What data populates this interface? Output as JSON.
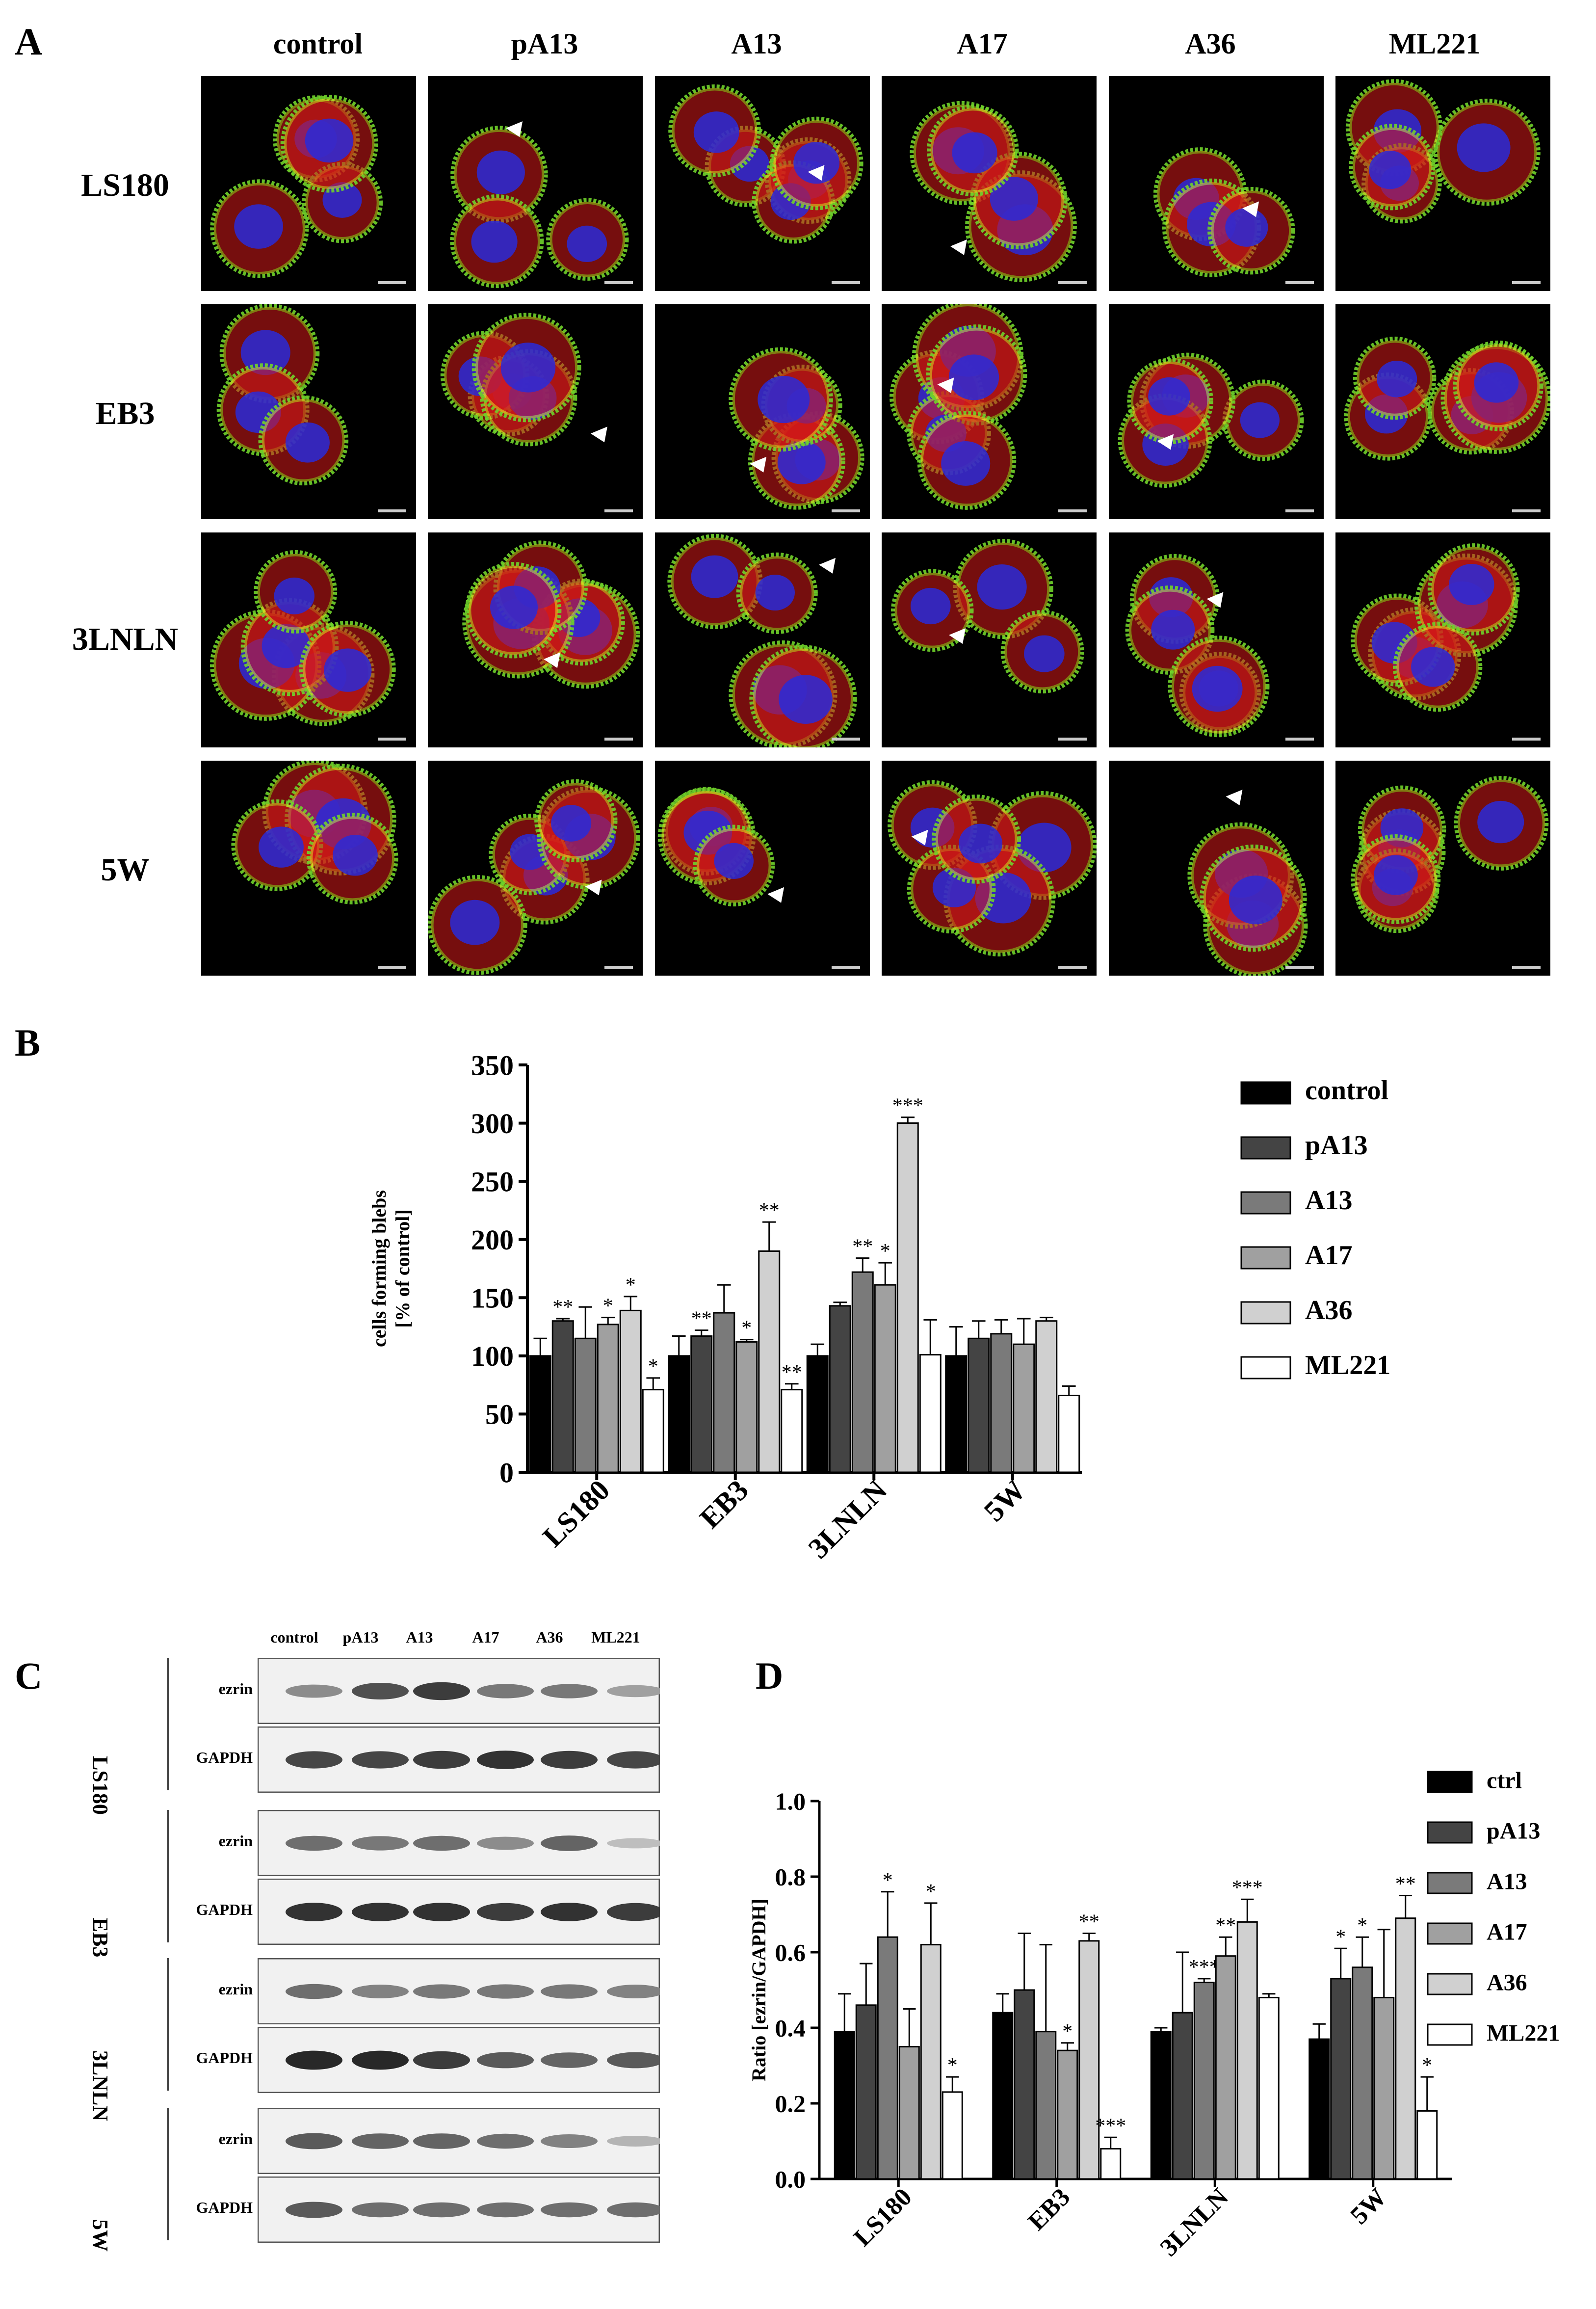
{
  "panel_letters": {
    "a": "A",
    "b": "B",
    "c": "C",
    "d": "D"
  },
  "panel_a": {
    "columns": [
      "control",
      "pA13",
      "A13",
      "A17",
      "A36",
      "ML221"
    ],
    "rows": [
      "LS180",
      "EB3",
      "3LNLN",
      "5W"
    ],
    "colors": {
      "nucleus": "#2a2ad8",
      "actin": "#d81a1a",
      "membrane": "#6fd12a",
      "overlap": "#e8e020"
    }
  },
  "panel_c": {
    "lanes": [
      "control",
      "pA13",
      "A13",
      "A17",
      "A36",
      "ML221"
    ],
    "blots": [
      {
        "cell_line": "LS180",
        "bands": [
          "ezrin",
          "GAPDH"
        ],
        "ezrin": [
          0.45,
          0.75,
          0.85,
          0.55,
          0.55,
          0.35
        ],
        "gapdh": [
          0.8,
          0.8,
          0.85,
          0.9,
          0.85,
          0.8
        ]
      },
      {
        "cell_line": "EB3",
        "bands": [
          "ezrin",
          "GAPDH"
        ],
        "ezrin": [
          0.6,
          0.55,
          0.6,
          0.45,
          0.65,
          0.2
        ],
        "gapdh": [
          0.9,
          0.9,
          0.9,
          0.85,
          0.9,
          0.85
        ]
      },
      {
        "cell_line": "3LNLN",
        "bands": [
          "ezrin",
          "GAPDH"
        ],
        "ezrin": [
          0.6,
          0.5,
          0.55,
          0.55,
          0.55,
          0.5
        ],
        "gapdh": [
          0.95,
          0.95,
          0.85,
          0.7,
          0.65,
          0.7
        ]
      },
      {
        "cell_line": "5W",
        "bands": [
          "ezrin",
          "GAPDH"
        ],
        "ezrin": [
          0.7,
          0.65,
          0.65,
          0.6,
          0.5,
          0.25
        ],
        "gapdh": [
          0.7,
          0.6,
          0.6,
          0.6,
          0.6,
          0.6
        ]
      }
    ]
  },
  "chart_data": [
    {
      "type": "bar",
      "panel": "B",
      "ylabel": "cells forming blebs [% of control]",
      "ylim": [
        0,
        350
      ],
      "yticks": [
        0,
        50,
        100,
        150,
        200,
        250,
        300,
        350
      ],
      "categories": [
        "LS180",
        "EB3",
        "3LNLN",
        "5W"
      ],
      "legend_position": "right",
      "series": [
        {
          "name": "control",
          "color": "#000000",
          "values": [
            100,
            100,
            100,
            100
          ],
          "errors": [
            15,
            17,
            10,
            25
          ],
          "sig": [
            "",
            "",
            "",
            ""
          ]
        },
        {
          "name": "pA13",
          "color": "#444444",
          "values": [
            130,
            117,
            143,
            115
          ],
          "errors": [
            2,
            5,
            3,
            15
          ],
          "sig": [
            "**",
            "**",
            "",
            ""
          ]
        },
        {
          "name": "A13",
          "color": "#7a7a7a",
          "values": [
            115,
            137,
            172,
            119
          ],
          "errors": [
            27,
            24,
            12,
            12
          ],
          "sig": [
            "",
            "",
            "**",
            ""
          ]
        },
        {
          "name": "A17",
          "color": "#a0a0a0",
          "values": [
            127,
            112,
            161,
            110
          ],
          "errors": [
            6,
            2,
            19,
            22
          ],
          "sig": [
            "*",
            "*",
            "*",
            ""
          ]
        },
        {
          "name": "A36",
          "color": "#d0d0d0",
          "values": [
            139,
            190,
            300,
            130
          ],
          "errors": [
            12,
            25,
            5,
            3
          ],
          "sig": [
            "*",
            "**",
            "***",
            ""
          ]
        },
        {
          "name": "ML221",
          "color": "#ffffff",
          "values": [
            71,
            71,
            101,
            66
          ],
          "errors": [
            10,
            5,
            30,
            8
          ],
          "sig": [
            "*",
            "**",
            "",
            ""
          ]
        }
      ]
    },
    {
      "type": "bar",
      "panel": "D",
      "ylabel": "Ratio [ezrin/GAPDH]",
      "ylim": [
        0,
        1.0
      ],
      "yticks": [
        "0.0",
        "0.2",
        "0.4",
        "0.6",
        "0.8",
        "1.0"
      ],
      "categories": [
        "LS180",
        "EB3",
        "3LNLN",
        "5W"
      ],
      "legend_position": "right",
      "series": [
        {
          "name": "ctrl",
          "color": "#000000",
          "values": [
            0.39,
            0.44,
            0.39,
            0.37
          ],
          "errors": [
            0.1,
            0.05,
            0.01,
            0.04
          ],
          "sig": [
            "",
            "",
            "",
            ""
          ]
        },
        {
          "name": "pA13",
          "color": "#444444",
          "values": [
            0.46,
            0.5,
            0.44,
            0.53
          ],
          "errors": [
            0.11,
            0.15,
            0.16,
            0.08
          ],
          "sig": [
            "",
            "",
            "",
            "*"
          ]
        },
        {
          "name": "A13",
          "color": "#7a7a7a",
          "values": [
            0.64,
            0.39,
            0.52,
            0.56
          ],
          "errors": [
            0.12,
            0.23,
            0.01,
            0.08
          ],
          "sig": [
            "*",
            "",
            "***",
            "*"
          ]
        },
        {
          "name": "A17",
          "color": "#a0a0a0",
          "values": [
            0.35,
            0.34,
            0.59,
            0.48
          ],
          "errors": [
            0.1,
            0.02,
            0.05,
            0.18
          ],
          "sig": [
            "",
            "*",
            "**",
            ""
          ]
        },
        {
          "name": "A36",
          "color": "#d0d0d0",
          "values": [
            0.62,
            0.63,
            0.68,
            0.69
          ],
          "errors": [
            0.11,
            0.02,
            0.06,
            0.06
          ],
          "sig": [
            "*",
            "**",
            "***",
            "**"
          ]
        },
        {
          "name": "ML221",
          "color": "#ffffff",
          "values": [
            0.23,
            0.08,
            0.48,
            0.18
          ],
          "errors": [
            0.04,
            0.03,
            0.01,
            0.09
          ],
          "sig": [
            "*",
            "***",
            "",
            "*"
          ]
        }
      ]
    }
  ]
}
